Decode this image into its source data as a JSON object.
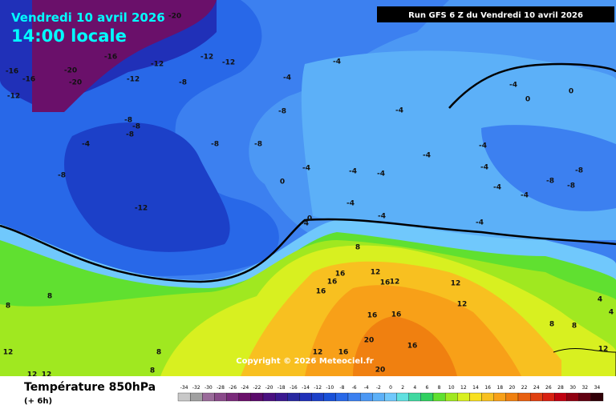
{
  "header": {
    "date": "Vendredi 10 avril 2026",
    "time": "14:00 locale",
    "run": "Run GFS 6 Z du Vendredi 10 avril 2026"
  },
  "copyright": "Copyright © 2026 Meteociel.fr",
  "footer": {
    "title": "Température 850hPa",
    "lead": "(+ 6h)"
  },
  "legend": {
    "ticks": [
      -34,
      -32,
      -30,
      -28,
      -26,
      -24,
      -22,
      -20,
      -18,
      -16,
      -14,
      -12,
      -10,
      -8,
      -6,
      -4,
      -2,
      0,
      2,
      4,
      6,
      8,
      10,
      12,
      14,
      16,
      18,
      20,
      22,
      24,
      26,
      28,
      30,
      32,
      34
    ],
    "colors": [
      "#c8c8c8",
      "#a0a0a0",
      "#9a6b9a",
      "#8a4a8a",
      "#7a2a7a",
      "#6a106a",
      "#5a0a6a",
      "#4a1080",
      "#3a1890",
      "#2828a0",
      "#2030b8",
      "#1c40c8",
      "#1850d8",
      "#2868e8",
      "#3c80f0",
      "#4c98f4",
      "#5cb0f8",
      "#70c8fc",
      "#60e0e0",
      "#40d8a0",
      "#30d060",
      "#60e030",
      "#a0e820",
      "#d8f020",
      "#f8e020",
      "#f8c020",
      "#f8a018",
      "#f08010",
      "#e86010",
      "#e04010",
      "#d82010",
      "#c00010",
      "#900010",
      "#600010",
      "#300008"
    ]
  },
  "contour_labels": [
    -20,
    -16,
    -12,
    -12,
    -12,
    -16,
    -16,
    -20,
    -20,
    -12,
    -8,
    -12,
    -8,
    -8,
    -8,
    -8,
    -4,
    -8,
    -8,
    -8,
    -4,
    -4,
    -4,
    -12,
    0,
    -4,
    -4,
    -4,
    -4,
    -4,
    -4,
    -8,
    -8,
    -8,
    -4,
    -4,
    -4,
    -4,
    -4,
    0,
    -4,
    -4,
    0,
    0,
    8,
    12,
    16,
    16,
    16,
    12,
    12,
    16,
    12,
    16,
    16,
    20,
    16,
    16,
    12,
    8,
    8,
    4,
    4,
    8,
    12,
    12,
    12,
    8,
    20,
    8,
    8,
    12
  ]
}
